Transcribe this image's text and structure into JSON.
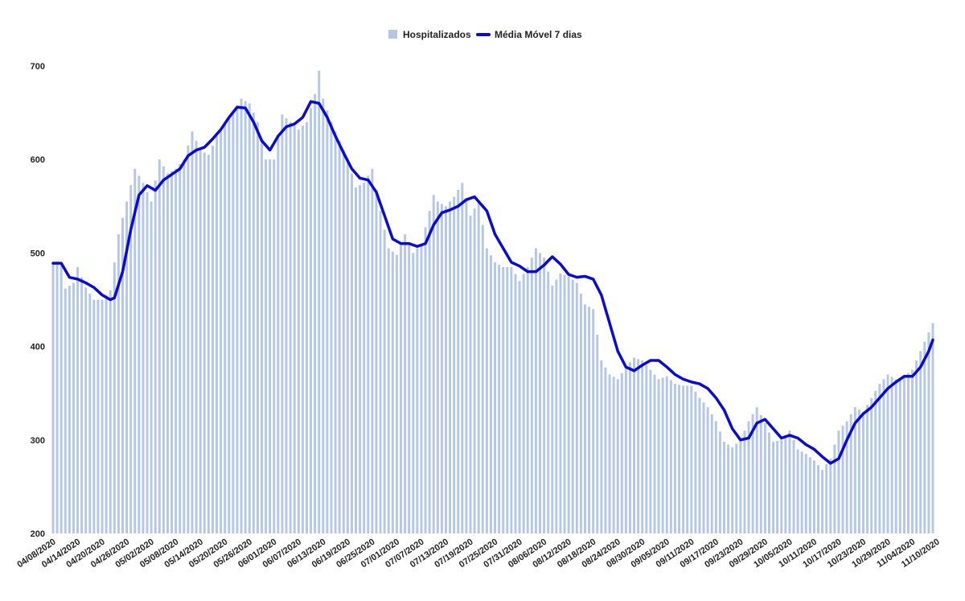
{
  "chart_data": {
    "type": "bar",
    "title": "",
    "xlabel": "",
    "ylabel": "",
    "ylim": [
      200,
      700
    ],
    "y_ticks": [
      200,
      300,
      400,
      500,
      600,
      700
    ],
    "grid": false,
    "legend_position": "top-center",
    "x_tick_labels": [
      "04/08/2020",
      "04/14/2020",
      "04/20/2020",
      "04/26/2020",
      "05/02/2020",
      "05/08/2020",
      "05/14/2020",
      "05/20/2020",
      "05/26/2020",
      "06/01/2020",
      "06/07/2020",
      "06/13/2020",
      "06/19/2020",
      "06/25/2020",
      "07/01/2020",
      "07/07/2020",
      "07/13/2020",
      "07/19/2020",
      "07/25/2020",
      "07/31/2020",
      "08/06/2020",
      "08/12/2020",
      "08/18/2020",
      "08/24/2020",
      "08/30/2020",
      "09/05/2020",
      "09/11/2020",
      "09/17/2020",
      "09/23/2020",
      "09/29/2020",
      "10/05/2020",
      "10/11/2020",
      "10/17/2020",
      "10/23/2020",
      "10/29/2020",
      "11/04/2020",
      "11/10/2020"
    ],
    "x_tick_interval_days": 6,
    "series": [
      {
        "name": "Hospitalizados",
        "type": "bar",
        "color": "#b4c7e7",
        "anchors": [
          [
            0,
            490
          ],
          [
            2,
            488
          ],
          [
            3,
            462
          ],
          [
            5,
            468
          ],
          [
            6,
            485
          ],
          [
            8,
            463
          ],
          [
            10,
            450
          ],
          [
            12,
            450
          ],
          [
            14,
            460
          ],
          [
            16,
            520
          ],
          [
            18,
            555
          ],
          [
            20,
            590
          ],
          [
            22,
            575
          ],
          [
            24,
            555
          ],
          [
            26,
            600
          ],
          [
            28,
            585
          ],
          [
            30,
            590
          ],
          [
            32,
            600
          ],
          [
            34,
            630
          ],
          [
            36,
            610
          ],
          [
            38,
            605
          ],
          [
            40,
            625
          ],
          [
            42,
            640
          ],
          [
            44,
            650
          ],
          [
            46,
            665
          ],
          [
            48,
            660
          ],
          [
            50,
            640
          ],
          [
            52,
            600
          ],
          [
            54,
            600
          ],
          [
            56,
            648
          ],
          [
            58,
            640
          ],
          [
            60,
            632
          ],
          [
            62,
            640
          ],
          [
            64,
            670
          ],
          [
            65,
            695
          ],
          [
            66,
            665
          ],
          [
            68,
            640
          ],
          [
            70,
            620
          ],
          [
            72,
            600
          ],
          [
            74,
            570
          ],
          [
            76,
            575
          ],
          [
            78,
            590
          ],
          [
            80,
            545
          ],
          [
            82,
            505
          ],
          [
            84,
            498
          ],
          [
            86,
            520
          ],
          [
            88,
            500
          ],
          [
            90,
            510
          ],
          [
            92,
            545
          ],
          [
            93,
            562
          ],
          [
            94,
            555
          ],
          [
            96,
            550
          ],
          [
            98,
            560
          ],
          [
            100,
            575
          ],
          [
            102,
            540
          ],
          [
            104,
            555
          ],
          [
            106,
            505
          ],
          [
            108,
            490
          ],
          [
            110,
            485
          ],
          [
            112,
            485
          ],
          [
            114,
            470
          ],
          [
            116,
            485
          ],
          [
            118,
            505
          ],
          [
            120,
            495
          ],
          [
            122,
            465
          ],
          [
            124,
            478
          ],
          [
            126,
            475
          ],
          [
            128,
            468
          ],
          [
            130,
            445
          ],
          [
            132,
            440
          ],
          [
            134,
            385
          ],
          [
            136,
            370
          ],
          [
            138,
            365
          ],
          [
            140,
            378
          ],
          [
            142,
            388
          ],
          [
            144,
            385
          ],
          [
            146,
            375
          ],
          [
            148,
            365
          ],
          [
            150,
            368
          ],
          [
            152,
            360
          ],
          [
            154,
            358
          ],
          [
            156,
            358
          ],
          [
            158,
            345
          ],
          [
            160,
            335
          ],
          [
            162,
            320
          ],
          [
            164,
            298
          ],
          [
            166,
            292
          ],
          [
            168,
            300
          ],
          [
            170,
            320
          ],
          [
            172,
            335
          ],
          [
            174,
            318
          ],
          [
            176,
            298
          ],
          [
            178,
            300
          ],
          [
            180,
            310
          ],
          [
            182,
            290
          ],
          [
            184,
            285
          ],
          [
            186,
            278
          ],
          [
            188,
            268
          ],
          [
            190,
            280
          ],
          [
            192,
            310
          ],
          [
            194,
            320
          ],
          [
            196,
            335
          ],
          [
            198,
            330
          ],
          [
            200,
            345
          ],
          [
            202,
            360
          ],
          [
            204,
            370
          ],
          [
            206,
            365
          ],
          [
            208,
            368
          ],
          [
            210,
            375
          ],
          [
            212,
            395
          ],
          [
            214,
            415
          ],
          [
            215,
            425
          ]
        ],
        "count": 216
      },
      {
        "name": "Média Móvel 7 dias",
        "type": "line",
        "color": "#0a0ad2",
        "anchors": [
          [
            0,
            489
          ],
          [
            2,
            489
          ],
          [
            4,
            474
          ],
          [
            6,
            472
          ],
          [
            8,
            468
          ],
          [
            10,
            463
          ],
          [
            12,
            455
          ],
          [
            14,
            450
          ],
          [
            15,
            452
          ],
          [
            17,
            480
          ],
          [
            19,
            525
          ],
          [
            21,
            562
          ],
          [
            23,
            572
          ],
          [
            25,
            567
          ],
          [
            27,
            578
          ],
          [
            29,
            584
          ],
          [
            31,
            590
          ],
          [
            33,
            604
          ],
          [
            35,
            610
          ],
          [
            37,
            613
          ],
          [
            39,
            622
          ],
          [
            41,
            632
          ],
          [
            43,
            645
          ],
          [
            45,
            656
          ],
          [
            47,
            655
          ],
          [
            49,
            640
          ],
          [
            51,
            620
          ],
          [
            53,
            610
          ],
          [
            55,
            625
          ],
          [
            57,
            635
          ],
          [
            59,
            638
          ],
          [
            61,
            645
          ],
          [
            63,
            662
          ],
          [
            65,
            660
          ],
          [
            67,
            645
          ],
          [
            69,
            625
          ],
          [
            71,
            607
          ],
          [
            73,
            590
          ],
          [
            75,
            580
          ],
          [
            77,
            578
          ],
          [
            79,
            565
          ],
          [
            81,
            540
          ],
          [
            83,
            515
          ],
          [
            85,
            510
          ],
          [
            87,
            510
          ],
          [
            89,
            507
          ],
          [
            91,
            510
          ],
          [
            93,
            530
          ],
          [
            95,
            543
          ],
          [
            97,
            546
          ],
          [
            99,
            550
          ],
          [
            101,
            557
          ],
          [
            103,
            560
          ],
          [
            105,
            550
          ],
          [
            106,
            545
          ],
          [
            108,
            520
          ],
          [
            110,
            505
          ],
          [
            112,
            490
          ],
          [
            114,
            486
          ],
          [
            116,
            480
          ],
          [
            118,
            480
          ],
          [
            120,
            487
          ],
          [
            122,
            496
          ],
          [
            124,
            488
          ],
          [
            126,
            477
          ],
          [
            128,
            474
          ],
          [
            130,
            475
          ],
          [
            132,
            472
          ],
          [
            134,
            455
          ],
          [
            136,
            425
          ],
          [
            138,
            395
          ],
          [
            140,
            378
          ],
          [
            142,
            374
          ],
          [
            144,
            380
          ],
          [
            146,
            385
          ],
          [
            148,
            385
          ],
          [
            150,
            378
          ],
          [
            152,
            370
          ],
          [
            154,
            365
          ],
          [
            156,
            362
          ],
          [
            158,
            360
          ],
          [
            160,
            355
          ],
          [
            162,
            345
          ],
          [
            164,
            332
          ],
          [
            166,
            312
          ],
          [
            168,
            300
          ],
          [
            170,
            302
          ],
          [
            172,
            318
          ],
          [
            174,
            322
          ],
          [
            176,
            312
          ],
          [
            178,
            302
          ],
          [
            180,
            305
          ],
          [
            182,
            302
          ],
          [
            184,
            295
          ],
          [
            186,
            290
          ],
          [
            188,
            282
          ],
          [
            190,
            275
          ],
          [
            192,
            280
          ],
          [
            194,
            300
          ],
          [
            196,
            318
          ],
          [
            198,
            328
          ],
          [
            200,
            335
          ],
          [
            202,
            345
          ],
          [
            204,
            355
          ],
          [
            206,
            362
          ],
          [
            208,
            368
          ],
          [
            210,
            368
          ],
          [
            212,
            378
          ],
          [
            214,
            395
          ],
          [
            215,
            407
          ]
        ],
        "count": 216
      }
    ]
  }
}
